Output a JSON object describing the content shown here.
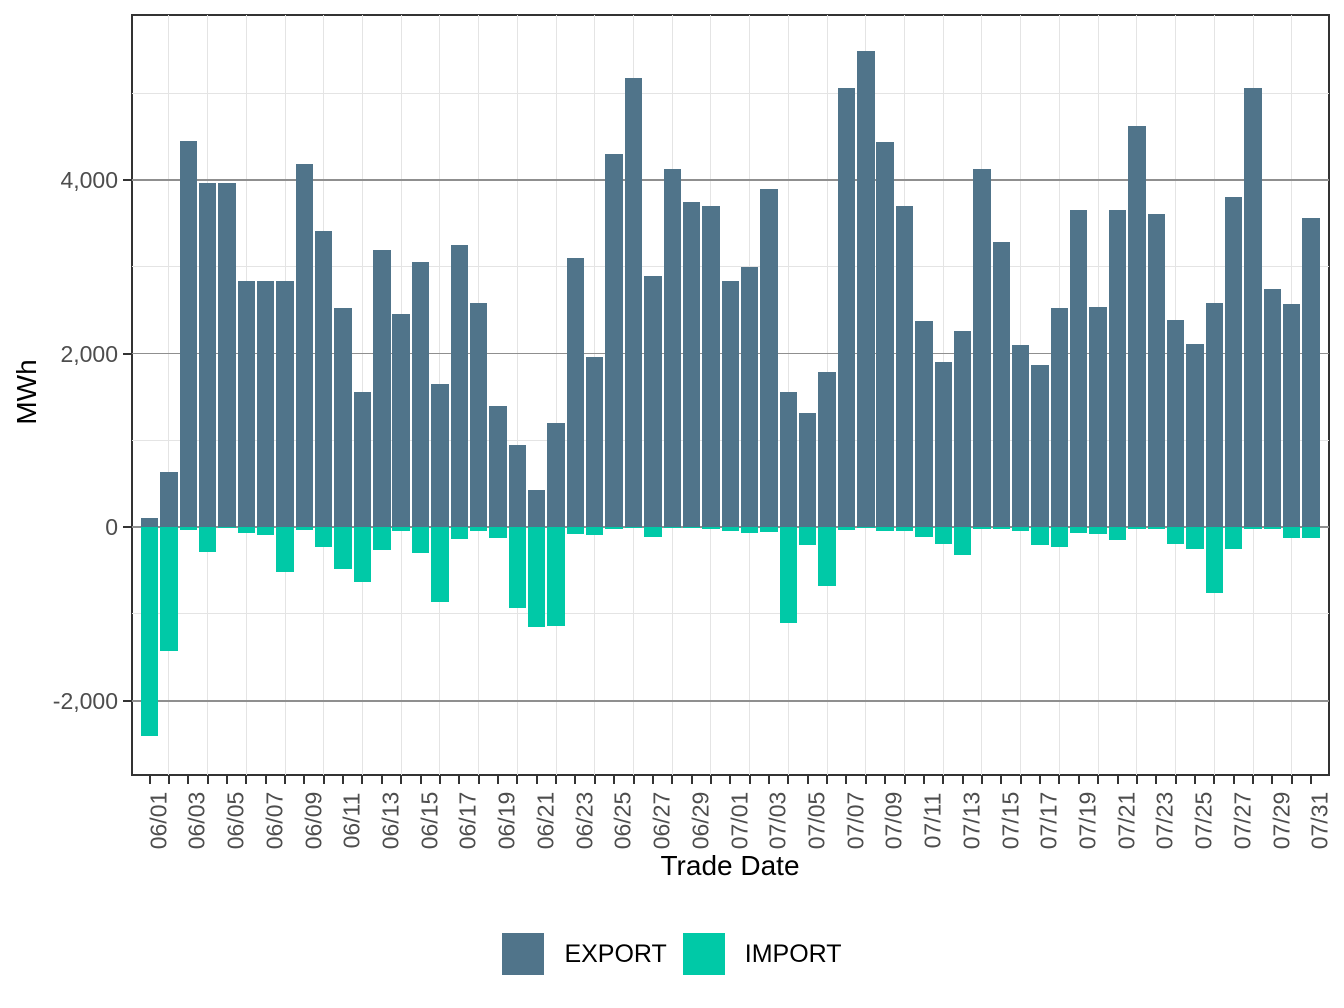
{
  "chart_data": {
    "type": "bar",
    "title": "",
    "xlabel": "Trade Date",
    "ylabel": "MWh",
    "categories": [
      "06/01",
      "06/02",
      "06/03",
      "06/04",
      "06/05",
      "06/06",
      "06/07",
      "06/08",
      "06/09",
      "06/10",
      "06/11",
      "06/12",
      "06/13",
      "06/14",
      "06/15",
      "06/16",
      "06/17",
      "06/18",
      "06/19",
      "06/20",
      "06/21",
      "06/22",
      "06/23",
      "06/24",
      "06/25",
      "06/26",
      "06/27",
      "06/28",
      "06/29",
      "06/30",
      "07/01",
      "07/02",
      "07/03",
      "07/04",
      "07/05",
      "07/06",
      "07/07",
      "07/08",
      "07/09",
      "07/10",
      "07/11",
      "07/12",
      "07/13",
      "07/14",
      "07/15",
      "07/16",
      "07/17",
      "07/18",
      "07/19",
      "07/20",
      "07/21",
      "07/22",
      "07/23",
      "07/24",
      "07/25",
      "07/26",
      "07/27",
      "07/28",
      "07/29",
      "07/30",
      "07/31"
    ],
    "series": [
      {
        "name": "EXPORT",
        "color": "#50748A",
        "values": [
          100,
          630,
          4450,
          3970,
          3970,
          2840,
          2840,
          2840,
          4180,
          3410,
          2520,
          1560,
          3190,
          2460,
          3050,
          1650,
          3250,
          2580,
          1400,
          950,
          430,
          1200,
          3100,
          1960,
          4300,
          5180,
          2890,
          4130,
          3750,
          3700,
          2830,
          3000,
          3900,
          1560,
          1310,
          1790,
          5060,
          5480,
          4440,
          3700,
          2370,
          1900,
          2260,
          4130,
          3280,
          2100,
          1870,
          2520,
          3650,
          2540,
          3650,
          4620,
          3610,
          2390,
          2110,
          2580,
          3800,
          5060,
          2740,
          2570,
          3560
        ]
      },
      {
        "name": "IMPORT",
        "color": "#00C9A7",
        "values": [
          -2410,
          -1430,
          -30,
          -290,
          -10,
          -70,
          -90,
          -520,
          -30,
          -230,
          -480,
          -630,
          -260,
          -40,
          -300,
          -860,
          -140,
          -50,
          -120,
          -930,
          -1150,
          -1140,
          -80,
          -90,
          -20,
          -10,
          -110,
          -15,
          -15,
          -20,
          -50,
          -70,
          -60,
          -1100,
          -210,
          -680,
          -30,
          -10,
          -50,
          -40,
          -110,
          -190,
          -320,
          -20,
          -20,
          -50,
          -210,
          -230,
          -70,
          -80,
          -150,
          -20,
          -20,
          -190,
          -250,
          -760,
          -250,
          -20,
          -20,
          -120,
          -120
        ]
      }
    ],
    "ylim": [
      -2855,
      5900
    ],
    "yticks": [
      -2000,
      0,
      2000,
      4000
    ],
    "ytick_labels": [
      "-2,000",
      "0",
      "2,000",
      "4,000"
    ],
    "minor_yticks": [
      -1000,
      1000,
      3000,
      5000
    ],
    "x_label_every": 2,
    "grid": true,
    "legend_position": "bottom"
  },
  "colors": {
    "export": "#50748A",
    "import": "#00C9A7",
    "grid_major": "#8f8f8f",
    "grid_minor": "#e4e4e4",
    "axis_text": "#4d4d4d",
    "panel_border": "#333333"
  },
  "legend": {
    "items": [
      {
        "label": "EXPORT",
        "color": "#50748A"
      },
      {
        "label": "IMPORT",
        "color": "#00C9A7"
      }
    ]
  }
}
